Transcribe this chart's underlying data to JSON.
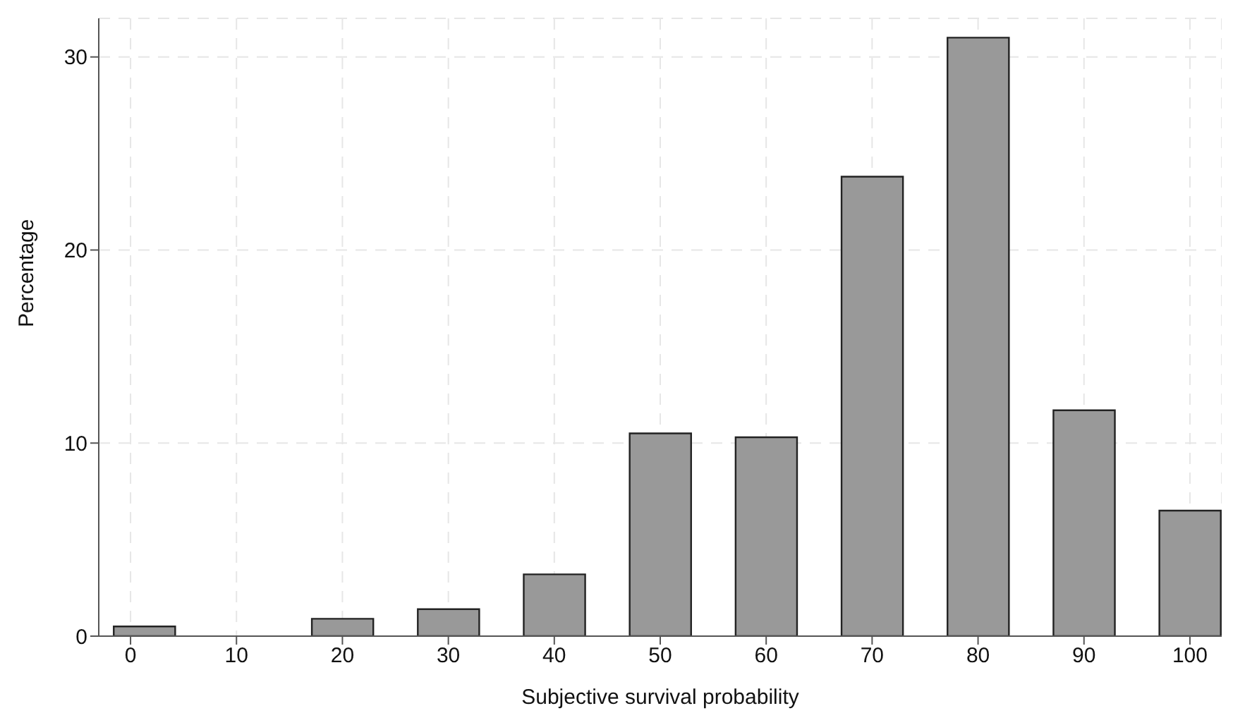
{
  "chart_data": {
    "type": "bar",
    "xlabel": "Subjective survival probability",
    "ylabel": "Percentage",
    "x": [
      1.3,
      10,
      20,
      30,
      40,
      50,
      60,
      70,
      80,
      90,
      100
    ],
    "values": [
      0.5,
      0,
      0.9,
      1.4,
      3.2,
      10.5,
      10.3,
      23.8,
      31.0,
      11.7,
      6.5
    ],
    "color": "#999999",
    "xlim": [
      -3,
      103
    ],
    "xticks": [
      0,
      10,
      20,
      30,
      40,
      50,
      60,
      70,
      80,
      90,
      100
    ],
    "ylim": [
      0,
      32
    ],
    "yticks": [
      0,
      10,
      20,
      30
    ],
    "grid": true
  }
}
